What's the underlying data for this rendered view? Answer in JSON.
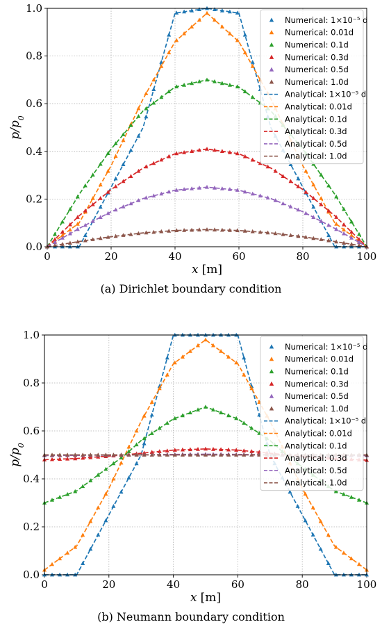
{
  "chart_data": [
    {
      "type": "line",
      "caption": "(a) Dirichlet boundary condition",
      "xlabel_var": "x",
      "xlabel_unit": "[m]",
      "ylabel": "p/p0",
      "xlim": [
        0,
        100
      ],
      "ylim": [
        0,
        1.0
      ],
      "xticks": [
        0,
        20,
        40,
        60,
        80,
        100
      ],
      "yticks": [
        0.0,
        0.2,
        0.4,
        0.6,
        0.8,
        1.0
      ],
      "grid": true,
      "legend_position": "top-right",
      "colors": [
        "#1f77b4",
        "#ff7f0e",
        "#2ca02c",
        "#d62728",
        "#9467bd",
        "#8c564b"
      ],
      "legend": {
        "numerical": [
          "Numerical: 1×10⁻⁵ d",
          "Numerical: 0.01d",
          "Numerical: 0.1d",
          "Numerical: 0.3d",
          "Numerical: 0.5d",
          "Numerical: 1.0d"
        ],
        "analytical": [
          "Analytical: 1×10⁻⁵ d",
          "Analytical: 0.01d",
          "Analytical: 0.1d",
          "Analytical: 0.3d",
          "Analytical: 0.5d",
          "Analytical: 1.0d"
        ]
      },
      "series": [
        {
          "name": "1×10⁻⁵ d",
          "x": [
            0,
            10,
            12,
            20,
            30,
            40,
            50,
            60,
            70,
            80,
            88,
            90,
            100
          ],
          "y": [
            0,
            0,
            0.05,
            0.25,
            0.5,
            0.98,
            1.0,
            0.98,
            0.5,
            0.25,
            0.05,
            0,
            0
          ]
        },
        {
          "name": "0.01d",
          "x": [
            0,
            10,
            20,
            30,
            40,
            50,
            60,
            70,
            80,
            90,
            100
          ],
          "y": [
            0,
            0.1,
            0.34,
            0.62,
            0.86,
            0.98,
            0.86,
            0.62,
            0.34,
            0.1,
            0
          ]
        },
        {
          "name": "0.1d",
          "x": [
            0,
            10,
            20,
            30,
            40,
            50,
            60,
            70,
            80,
            90,
            100
          ],
          "y": [
            0,
            0.22,
            0.41,
            0.57,
            0.67,
            0.7,
            0.67,
            0.57,
            0.41,
            0.22,
            0
          ]
        },
        {
          "name": "0.3d",
          "x": [
            0,
            10,
            20,
            30,
            40,
            50,
            60,
            70,
            80,
            90,
            100
          ],
          "y": [
            0,
            0.13,
            0.24,
            0.33,
            0.39,
            0.41,
            0.39,
            0.33,
            0.24,
            0.13,
            0
          ]
        },
        {
          "name": "0.5d",
          "x": [
            0,
            10,
            20,
            30,
            40,
            50,
            60,
            70,
            80,
            90,
            100
          ],
          "y": [
            0,
            0.077,
            0.147,
            0.202,
            0.237,
            0.25,
            0.237,
            0.202,
            0.147,
            0.077,
            0
          ]
        },
        {
          "name": "1.0d",
          "x": [
            0,
            10,
            20,
            30,
            40,
            50,
            60,
            70,
            80,
            90,
            100
          ],
          "y": [
            0,
            0.022,
            0.042,
            0.058,
            0.068,
            0.072,
            0.068,
            0.058,
            0.042,
            0.022,
            0
          ]
        }
      ]
    },
    {
      "type": "line",
      "caption": "(b) Neumann boundary condition",
      "xlabel_var": "x",
      "xlabel_unit": "[m]",
      "ylabel": "p/p0",
      "xlim": [
        0,
        100
      ],
      "ylim": [
        0,
        1.0
      ],
      "xticks": [
        0,
        20,
        40,
        60,
        80,
        100
      ],
      "yticks": [
        0.0,
        0.2,
        0.4,
        0.6,
        0.8,
        1.0
      ],
      "grid": true,
      "legend_position": "top-right",
      "colors": [
        "#1f77b4",
        "#ff7f0e",
        "#2ca02c",
        "#d62728",
        "#9467bd",
        "#8c564b"
      ],
      "legend": {
        "numerical": [
          "Numerical: 1×10⁻⁵ d",
          "Numerical: 0.01d",
          "Numerical: 0.1d",
          "Numerical: 0.3d",
          "Numerical: 0.5d",
          "Numerical: 1.0d"
        ],
        "analytical": [
          "Analytical: 1×10⁻⁵ d",
          "Analytical: 0.01d",
          "Analytical: 0.1d",
          "Analytical: 0.3d",
          "Analytical: 0.5d",
          "Analytical: 1.0d"
        ]
      },
      "series": [
        {
          "name": "1×10⁻⁵ d",
          "x": [
            0,
            10,
            12,
            20,
            30,
            40,
            50,
            60,
            70,
            80,
            88,
            90,
            100
          ],
          "y": [
            0,
            0,
            0.05,
            0.25,
            0.5,
            1.0,
            1.0,
            1.0,
            0.5,
            0.25,
            0.05,
            0,
            0
          ]
        },
        {
          "name": "0.01d",
          "x": [
            0,
            10,
            20,
            25,
            30,
            40,
            50,
            60,
            70,
            75,
            80,
            90,
            100
          ],
          "y": [
            0.02,
            0.12,
            0.36,
            0.5,
            0.64,
            0.88,
            0.98,
            0.88,
            0.64,
            0.5,
            0.36,
            0.12,
            0.02
          ]
        },
        {
          "name": "0.1d",
          "x": [
            0,
            10,
            20,
            25,
            30,
            40,
            50,
            60,
            70,
            75,
            80,
            90,
            100
          ],
          "y": [
            0.3,
            0.35,
            0.45,
            0.5,
            0.56,
            0.65,
            0.7,
            0.65,
            0.56,
            0.5,
            0.45,
            0.35,
            0.3
          ]
        },
        {
          "name": "0.3d",
          "x": [
            0,
            10,
            20,
            25,
            30,
            40,
            50,
            60,
            70,
            75,
            80,
            90,
            100
          ],
          "y": [
            0.48,
            0.485,
            0.495,
            0.5,
            0.507,
            0.52,
            0.525,
            0.52,
            0.507,
            0.5,
            0.495,
            0.485,
            0.478
          ]
        },
        {
          "name": "0.5d",
          "x": [
            0,
            20,
            40,
            50,
            60,
            80,
            100
          ],
          "y": [
            0.497,
            0.499,
            0.502,
            0.503,
            0.502,
            0.499,
            0.497
          ]
        },
        {
          "name": "1.0d",
          "x": [
            0,
            50,
            100
          ],
          "y": [
            0.5,
            0.5,
            0.5
          ]
        }
      ]
    }
  ]
}
